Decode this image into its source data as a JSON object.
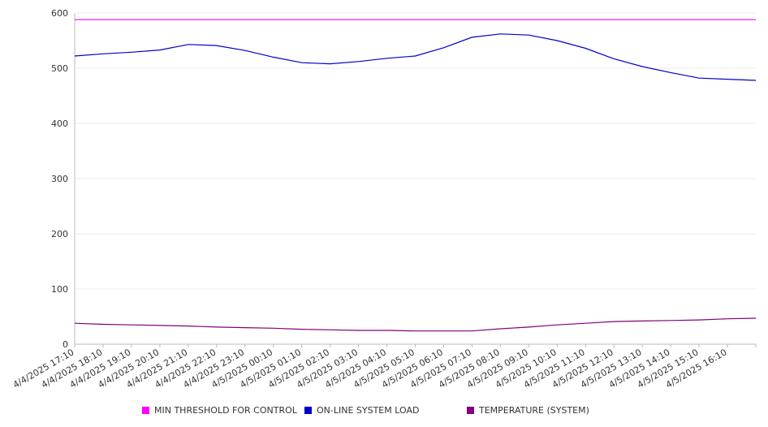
{
  "chart_data": {
    "type": "line",
    "title": "",
    "xlabel": "",
    "ylabel": "",
    "ylim": [
      0,
      600
    ],
    "yticks": [
      0,
      100,
      200,
      300,
      400,
      500,
      600
    ],
    "grid": true,
    "legend_position": "bottom",
    "categories": [
      "4/4/2025 17:10",
      "4/4/2025 18:10",
      "4/4/2025 19:10",
      "4/4/2025 20:10",
      "4/4/2025 21:10",
      "4/4/2025 22:10",
      "4/4/2025 23:10",
      "4/5/2025 00:10",
      "4/5/2025 01:10",
      "4/5/2025 02:10",
      "4/5/2025 03:10",
      "4/5/2025 04:10",
      "4/5/2025 05:10",
      "4/5/2025 06:10",
      "4/5/2025 07:10",
      "4/5/2025 08:10",
      "4/5/2025 09:10",
      "4/5/2025 10:10",
      "4/5/2025 11:10",
      "4/5/2025 12:10",
      "4/5/2025 13:10",
      "4/5/2025 14:10",
      "4/5/2025 15:10",
      "4/5/2025 16:10",
      ""
    ],
    "series": [
      {
        "name": "MIN THRESHOLD FOR CONTROL",
        "color": "#ff00ff",
        "values": [
          588,
          588,
          588,
          588,
          588,
          588,
          588,
          588,
          588,
          588,
          588,
          588,
          588,
          588,
          588,
          588,
          588,
          588,
          588,
          588,
          588,
          588,
          588,
          588,
          588
        ]
      },
      {
        "name": "ON-LINE SYSTEM LOAD",
        "color": "#0000cc",
        "values": [
          522,
          526,
          529,
          533,
          543,
          541,
          532,
          520,
          510,
          508,
          512,
          518,
          522,
          537,
          556,
          562,
          560,
          550,
          536,
          517,
          503,
          492,
          482,
          480,
          478
        ]
      },
      {
        "name": "TEMPERATURE (SYSTEM)",
        "color": "#800080",
        "values": [
          38,
          36,
          35,
          34,
          33,
          31,
          30,
          29,
          27,
          26,
          25,
          25,
          24,
          24,
          24,
          28,
          31,
          35,
          38,
          41,
          42,
          43,
          44,
          46,
          47
        ]
      }
    ]
  }
}
